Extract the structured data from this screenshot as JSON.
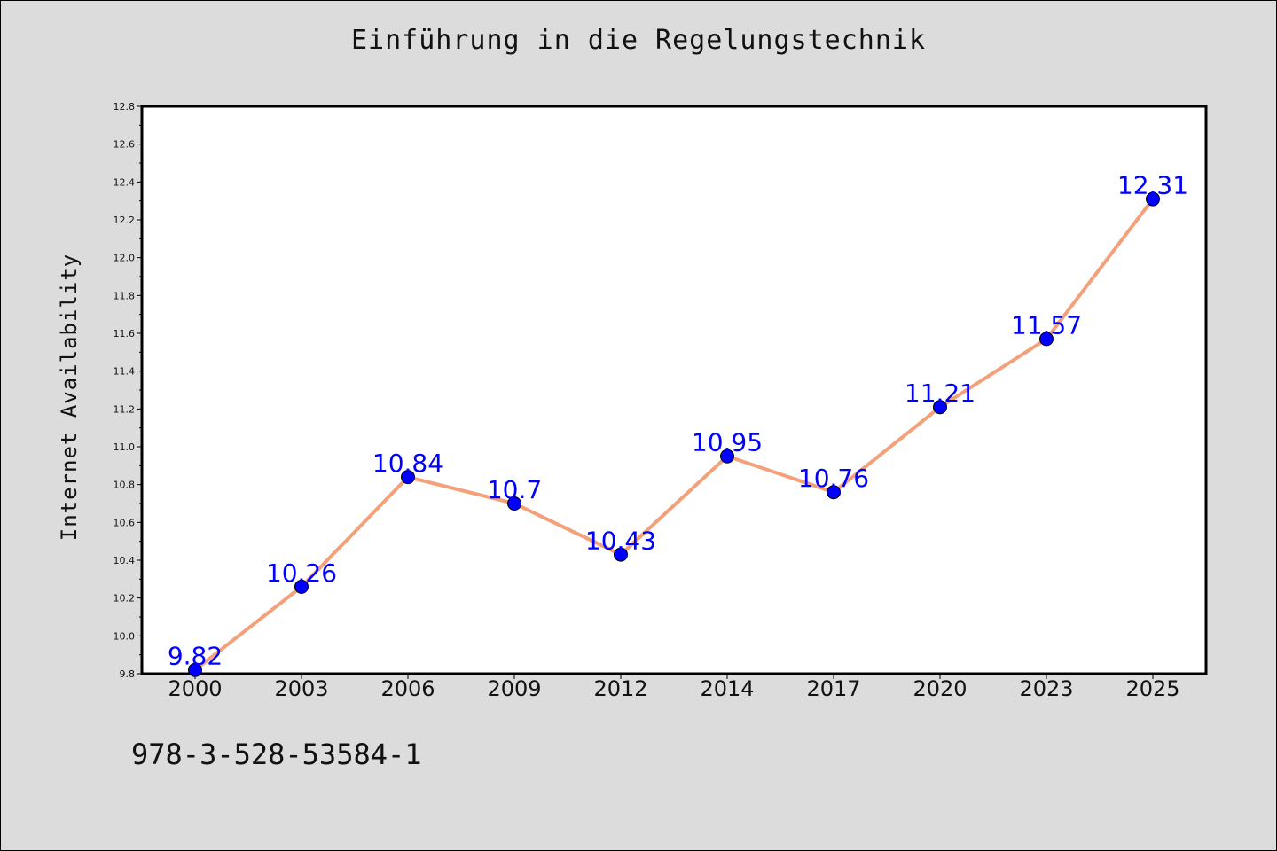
{
  "page": {
    "title": "Einführung in die Regelungstechnik",
    "footer_code": "978-3-528-53584-1"
  },
  "colors": {
    "background": "#dcdcdc",
    "plot_area": "#ffffff",
    "line": "#f4a07a",
    "marker": "#0000ff",
    "data_label": "#0000ff"
  },
  "chart_data": {
    "type": "line",
    "title": "Einführung in die Regelungstechnik",
    "xlabel": "",
    "ylabel": "Internet Availability",
    "categories": [
      "2000",
      "2003",
      "2006",
      "2009",
      "2012",
      "2014",
      "2017",
      "2020",
      "2023",
      "2025"
    ],
    "series": [
      {
        "values": [
          9.82,
          10.26,
          10.84,
          10.7,
          10.43,
          10.95,
          10.76,
          11.21,
          11.57,
          12.31
        ]
      }
    ],
    "data_labels": [
      "9.82",
      "10.26",
      "10.84",
      "10.7",
      "10.43",
      "10.95",
      "10.76",
      "11.21",
      "11.57",
      "12.31"
    ],
    "ylim": [
      9.8,
      12.8
    ],
    "yticks": [
      "9.8",
      "10.0",
      "10.2",
      "10.4",
      "10.6",
      "10.8",
      "11.0",
      "11.2",
      "11.4",
      "11.6",
      "11.8",
      "12.0",
      "12.2",
      "12.4",
      "12.6",
      "12.8"
    ],
    "grid": false,
    "legend": "none"
  }
}
